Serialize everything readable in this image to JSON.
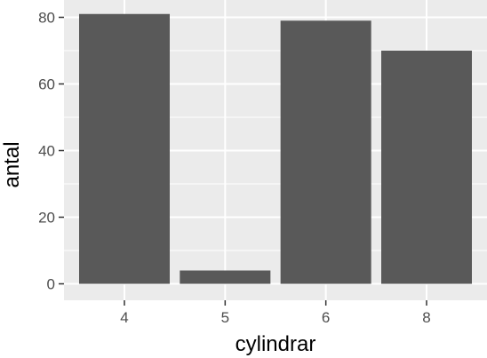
{
  "chart_data": {
    "type": "bar",
    "xlabel": "cylindrar",
    "ylabel": "antal",
    "categories": [
      "4",
      "5",
      "6",
      "8"
    ],
    "values": [
      81,
      4,
      79,
      70
    ],
    "ylim": [
      0,
      85
    ],
    "yticks": [
      0,
      20,
      40,
      60,
      80
    ],
    "grid": true,
    "legend": "none",
    "colors": {
      "panel_background": "#ebebeb",
      "grid_major": "#ffffff",
      "bar_fill": "#595959",
      "tick_text": "#4d4d4d",
      "tick_mark": "#333333"
    }
  }
}
